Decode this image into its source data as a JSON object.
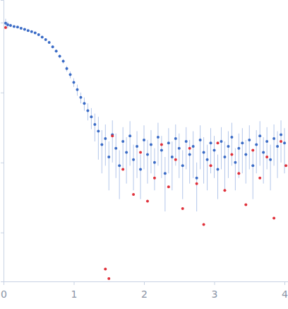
{
  "chart_data": {
    "type": "scatter",
    "log": "y",
    "tick_labels": "x",
    "xlim": [
      0,
      4.05
    ],
    "xticks": [
      0,
      1,
      2,
      3,
      4
    ],
    "ylim": [
      0.0002,
      2.1
    ],
    "yticks": [
      0.001,
      0.01,
      0.1,
      1
    ],
    "series": [
      {
        "color": "#3a6bc6",
        "marker": "circle",
        "x": [
          0.03,
          0.06,
          0.1,
          0.15,
          0.2,
          0.25,
          0.3,
          0.35,
          0.4,
          0.45,
          0.5,
          0.55,
          0.6,
          0.65,
          0.7,
          0.75,
          0.8,
          0.85,
          0.9,
          0.95,
          1.0,
          1.05,
          1.1,
          1.15,
          1.2,
          1.25,
          1.3,
          1.35,
          1.4,
          1.45,
          1.5,
          1.55,
          1.6,
          1.65,
          1.7,
          1.75,
          1.8,
          1.85,
          1.9,
          1.95,
          2.0,
          2.05,
          2.1,
          2.15,
          2.2,
          2.25,
          2.3,
          2.35,
          2.4,
          2.45,
          2.5,
          2.55,
          2.6,
          2.65,
          2.7,
          2.75,
          2.8,
          2.85,
          2.9,
          2.95,
          3.0,
          3.05,
          3.1,
          3.15,
          3.2,
          3.25,
          3.3,
          3.35,
          3.4,
          3.45,
          3.5,
          3.55,
          3.6,
          3.65,
          3.7,
          3.75,
          3.8,
          3.85,
          3.9,
          3.95,
          4.0
        ],
        "values": [
          0.98,
          0.93,
          0.91,
          0.88,
          0.86,
          0.83,
          0.8,
          0.77,
          0.74,
          0.71,
          0.67,
          0.62,
          0.57,
          0.52,
          0.45,
          0.39,
          0.33,
          0.28,
          0.22,
          0.18,
          0.14,
          0.11,
          0.085,
          0.07,
          0.055,
          0.045,
          0.035,
          0.028,
          0.018,
          0.022,
          0.012,
          0.025,
          0.016,
          0.009,
          0.02,
          0.014,
          0.024,
          0.011,
          0.017,
          0.008,
          0.021,
          0.013,
          0.018,
          0.01,
          0.023,
          0.015,
          0.007,
          0.019,
          0.012,
          0.022,
          0.016,
          0.009,
          0.02,
          0.013,
          0.017,
          0.006,
          0.021,
          0.014,
          0.011,
          0.019,
          0.015,
          0.008,
          0.02,
          0.012,
          0.017,
          0.023,
          0.01,
          0.016,
          0.019,
          0.013,
          0.021,
          0.009,
          0.018,
          0.024,
          0.014,
          0.02,
          0.011,
          0.022,
          0.017,
          0.025,
          0.019
        ],
        "errors": [
          0.15,
          0.1,
          0.05,
          0.03,
          0.02,
          0.02,
          0.02,
          0.02,
          0.02,
          0.02,
          0.02,
          0.02,
          0.02,
          0.02,
          0.02,
          0.02,
          0.02,
          0.02,
          0.02,
          0.02,
          0.02,
          0.02,
          0.015,
          0.015,
          0.015,
          0.015,
          0.015,
          0.017,
          0.011,
          0.013,
          0.008,
          0.015,
          0.01,
          0.006,
          0.012,
          0.009,
          0.015,
          0.007,
          0.011,
          0.005,
          0.013,
          0.008,
          0.011,
          0.006,
          0.014,
          0.009,
          0.005,
          0.012,
          0.008,
          0.013,
          0.01,
          0.006,
          0.012,
          0.008,
          0.011,
          0.004,
          0.013,
          0.009,
          0.007,
          0.012,
          0.009,
          0.005,
          0.012,
          0.008,
          0.011,
          0.014,
          0.006,
          0.01,
          0.012,
          0.008,
          0.013,
          0.006,
          0.011,
          0.015,
          0.009,
          0.012,
          0.007,
          0.013,
          0.011,
          0.015,
          0.012
        ]
      },
      {
        "color": "#e0303a",
        "marker": "circle",
        "x": [
          0.03,
          1.45,
          1.5,
          1.55,
          1.7,
          1.85,
          1.95,
          2.05,
          2.15,
          2.25,
          2.35,
          2.45,
          2.55,
          2.65,
          2.75,
          2.85,
          2.95,
          3.05,
          3.15,
          3.25,
          3.35,
          3.45,
          3.55,
          3.65,
          3.75,
          3.85,
          3.95,
          4.02
        ],
        "values": [
          0.85,
          0.0003,
          0.00022,
          0.024,
          0.008,
          0.0035,
          0.014,
          0.0028,
          0.006,
          0.018,
          0.0045,
          0.011,
          0.0022,
          0.016,
          0.005,
          0.0013,
          0.009,
          0.019,
          0.004,
          0.013,
          0.007,
          0.0025,
          0.015,
          0.006,
          0.012,
          0.0016,
          0.02,
          0.009
        ]
      }
    ]
  }
}
